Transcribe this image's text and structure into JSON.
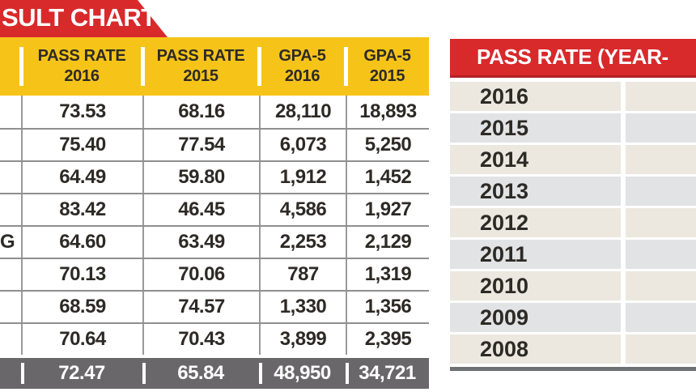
{
  "left_table": {
    "banner": "SULT CHART",
    "headers": [
      {
        "label": "PASS RATE",
        "year": "2016"
      },
      {
        "label": "PASS RATE",
        "year": "2015"
      },
      {
        "label": "GPA-5",
        "year": "2016"
      },
      {
        "label": "GPA-5",
        "year": "2015"
      }
    ],
    "rows": [
      [
        "",
        "73.53",
        "68.16",
        "28,110",
        "18,893"
      ],
      [
        "",
        "75.40",
        "77.54",
        "6,073",
        "5,250"
      ],
      [
        "",
        "64.49",
        "59.80",
        "1,912",
        "1,452"
      ],
      [
        "",
        "83.42",
        "46.45",
        "4,586",
        "1,927"
      ],
      [
        "G",
        "64.60",
        "63.49",
        "2,253",
        "2,129"
      ],
      [
        "",
        "70.13",
        "70.06",
        "787",
        "1,319"
      ],
      [
        "",
        "68.59",
        "74.57",
        "1,330",
        "1,356"
      ],
      [
        "",
        "70.64",
        "70.43",
        "3,899",
        "2,395"
      ]
    ],
    "total": [
      "72.47",
      "65.84",
      "48,950",
      "34,721"
    ]
  },
  "right_table": {
    "title": "PASS RATE (YEAR-",
    "years": [
      "2016",
      "2015",
      "2014",
      "2013",
      "2012",
      "2011",
      "2010",
      "2009",
      "2008"
    ]
  },
  "colors": {
    "red": "#d8292b",
    "dark_red": "#b22126",
    "yellow": "#f6c419",
    "total_bar_gray": "#6a676b",
    "row_cream": "#ece8df",
    "row_gray": "#e2e3e5",
    "grid_line": "#8f8f8f",
    "text_dark": "#2d2a26"
  },
  "chart_data": [
    {
      "type": "table",
      "title": "SULT CHART",
      "columns": [
        "",
        "PASS RATE 2016",
        "PASS RATE 2015",
        "GPA-5 2016",
        "GPA-5 2015"
      ],
      "rows": [
        [
          "",
          73.53,
          68.16,
          28110,
          18893
        ],
        [
          "",
          75.4,
          77.54,
          6073,
          5250
        ],
        [
          "",
          64.49,
          59.8,
          1912,
          1452
        ],
        [
          "",
          83.42,
          46.45,
          4586,
          1927
        ],
        [
          "G",
          64.6,
          63.49,
          2253,
          2129
        ],
        [
          "",
          70.13,
          70.06,
          787,
          1319
        ],
        [
          "",
          68.59,
          74.57,
          1330,
          1356
        ],
        [
          "",
          70.64,
          70.43,
          3899,
          2395
        ]
      ],
      "total_row": [
        72.47,
        65.84,
        48950,
        34721
      ]
    },
    {
      "type": "table",
      "title": "PASS RATE (YEAR-",
      "rows": [
        [
          "2016",
          ""
        ],
        [
          "2015",
          ""
        ],
        [
          "2014",
          ""
        ],
        [
          "2013",
          ""
        ],
        [
          "2012",
          ""
        ],
        [
          "2011",
          ""
        ],
        [
          "2010",
          ""
        ],
        [
          "2009",
          ""
        ],
        [
          "2008",
          ""
        ]
      ]
    }
  ]
}
